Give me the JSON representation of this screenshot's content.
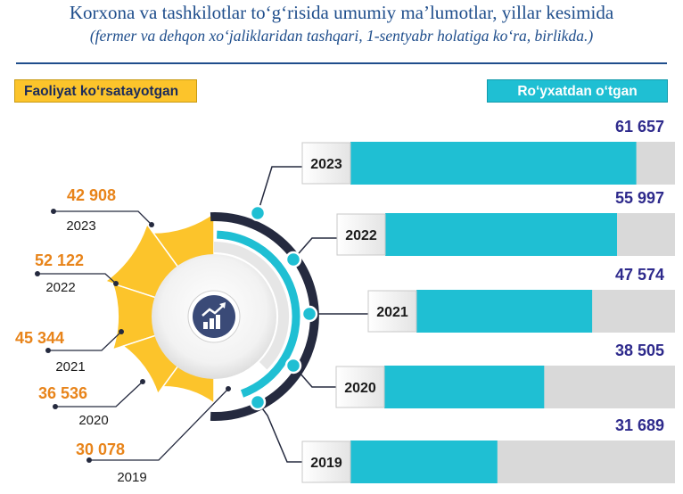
{
  "header": {
    "title": "Korxona va tashkilotlar to‘g‘risida umumiy ma’lumotlar, yillar kesimida",
    "subtitle": "(fermer va dehqon xo‘jaliklaridan tashqari, 1-sentyabr holatiga ko‘ra, birlikda.)"
  },
  "legend": {
    "left_label": "Faoliyat ko‘rsatayotgan",
    "right_label": "Ro‘yxatdan o‘tgan"
  },
  "colors": {
    "active": "#fcc42b",
    "registered": "#1fbfd3",
    "bar_track": "#d9d9d9",
    "active_value_text": "#e8841a",
    "registered_value_text": "#2e2a8c",
    "title_text": "#1f4e8c"
  },
  "center_icon": "growth-chart-icon",
  "chart_data": [
    {
      "type": "bar",
      "orientation": "horizontal",
      "series": [
        {
          "name": "Ro‘yxatdan o‘tgan",
          "values": [
            61657,
            55997,
            47574,
            38505,
            31689
          ]
        }
      ],
      "categories": [
        "2023",
        "2022",
        "2021",
        "2020",
        "2019"
      ],
      "value_labels": [
        "61 657",
        "55 997",
        "47 574",
        "38 505",
        "31 689"
      ],
      "xlim": [
        0,
        70000
      ]
    },
    {
      "type": "pie",
      "subtype": "half-rose",
      "series": [
        {
          "name": "Faoliyat ko‘rsatayotgan",
          "values": [
            42908,
            52122,
            45344,
            36536,
            30078
          ]
        }
      ],
      "categories": [
        "2023",
        "2022",
        "2021",
        "2020",
        "2019"
      ],
      "value_labels": [
        "42 908",
        "52 122",
        "45 344",
        "36 536",
        "30 078"
      ]
    }
  ]
}
